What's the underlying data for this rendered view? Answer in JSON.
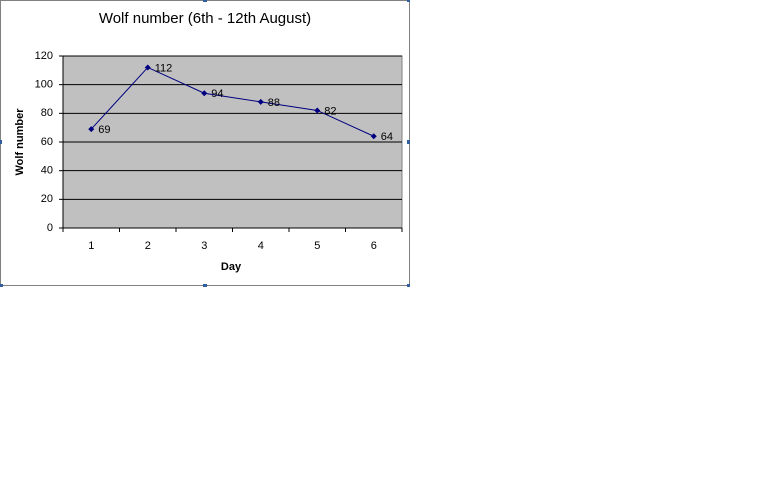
{
  "chart_data": {
    "type": "line",
    "title": "Wolf number (6th - 12th August)",
    "x_label": "Day",
    "y_label": "Wolf number",
    "categories": [
      "1",
      "2",
      "3",
      "4",
      "5",
      "6"
    ],
    "values": [
      69,
      112,
      94,
      88,
      82,
      64
    ],
    "color": "#000080",
    "plot_background": "#c0c0c0",
    "ylim": [
      0,
      120
    ],
    "yticks": [
      0,
      20,
      40,
      60,
      80,
      100,
      120
    ],
    "grid": true,
    "data_labels": true
  }
}
